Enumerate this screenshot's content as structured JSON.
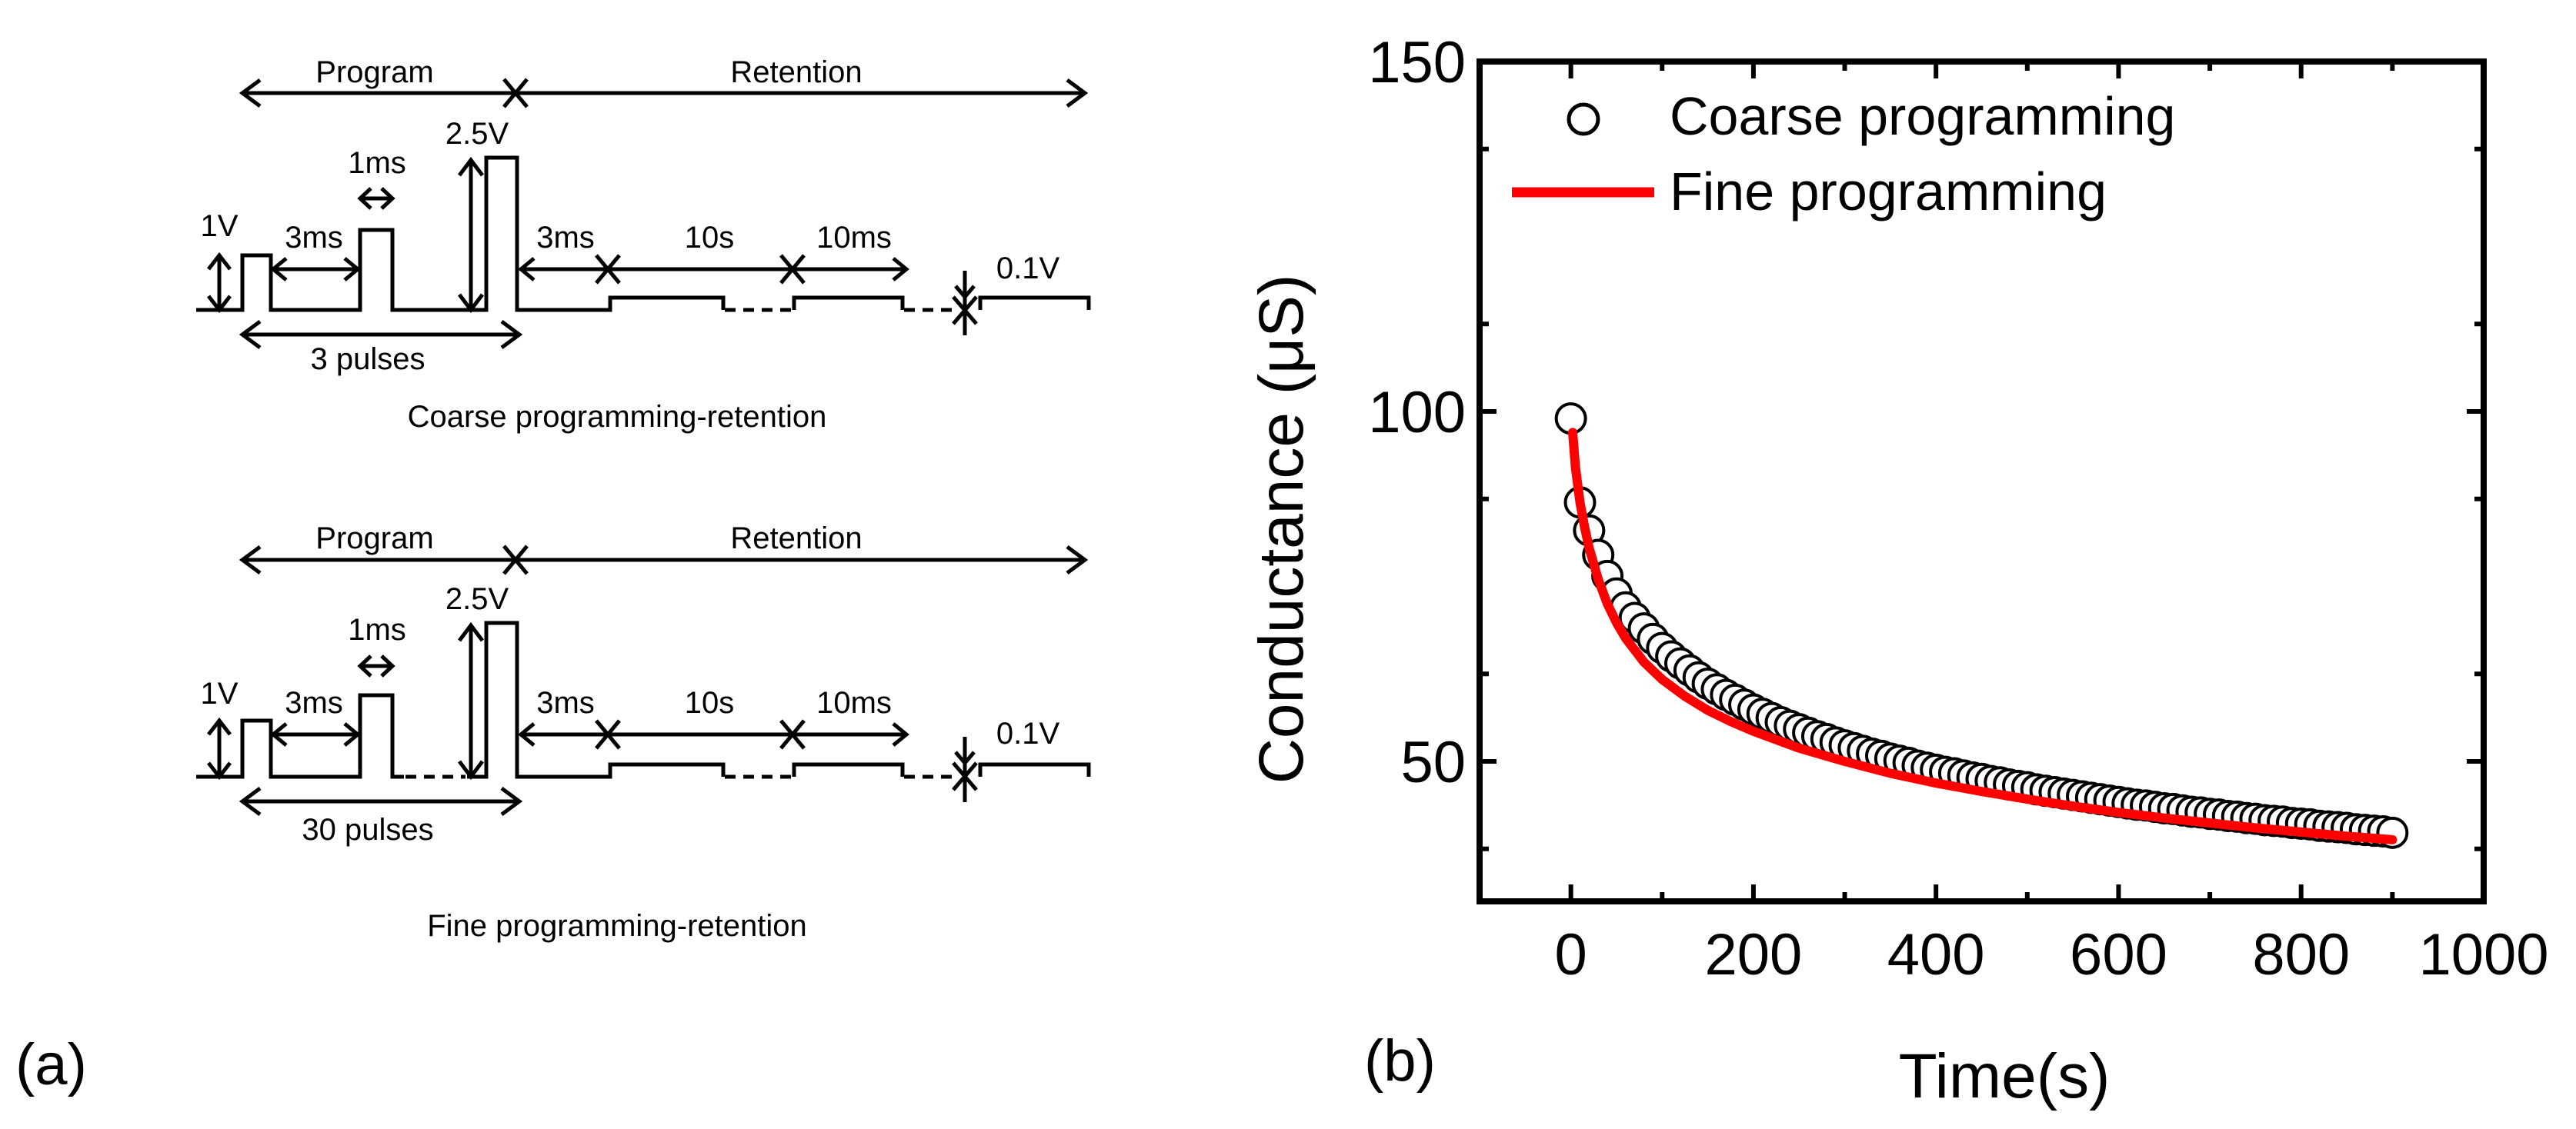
{
  "panel_a": {
    "label": "(a)",
    "coarse": {
      "program_label": "Program",
      "retention_label": "Retention",
      "v_read_start": "1V",
      "t_gap": "3ms",
      "t_pulse": "1ms",
      "v_program": "2.5V",
      "t_after": "3ms",
      "t_retention": "10s",
      "t_read": "10ms",
      "v_read": "0.1V",
      "pulses": "3 pulses",
      "caption": "Coarse programming-retention"
    },
    "fine": {
      "program_label": "Program",
      "retention_label": "Retention",
      "v_read_start": "1V",
      "t_gap": "3ms",
      "t_pulse": "1ms",
      "v_program": "2.5V",
      "t_after": "3ms",
      "t_retention": "10s",
      "t_read": "10ms",
      "v_read": "0.1V",
      "pulses": "30 pulses",
      "caption": "Fine programming-retention"
    }
  },
  "panel_b": {
    "label": "(b)"
  },
  "chart_data": {
    "type": "scatter",
    "title": "",
    "xlabel": "Time(s)",
    "ylabel": "Conductance (μS)",
    "xlim": [
      -100,
      1000
    ],
    "ylim": [
      30,
      150
    ],
    "xticks": [
      0,
      200,
      400,
      600,
      800,
      1000
    ],
    "yticks": [
      50,
      100,
      150
    ],
    "xtick_labels": [
      "0",
      "200",
      "400",
      "600",
      "800",
      "1000"
    ],
    "ytick_labels": [
      "50",
      "100",
      "150"
    ],
    "legend_position": "top-left",
    "series": [
      {
        "name": "Coarse programming",
        "style": "open-circle",
        "color": "#000000",
        "x": [
          0,
          10,
          20,
          30,
          40,
          50,
          60,
          70,
          80,
          90,
          100,
          110,
          120,
          130,
          140,
          150,
          160,
          170,
          180,
          190,
          200,
          210,
          220,
          230,
          240,
          250,
          260,
          270,
          280,
          290,
          300,
          310,
          320,
          330,
          340,
          350,
          360,
          370,
          380,
          390,
          400,
          410,
          420,
          430,
          440,
          450,
          460,
          470,
          480,
          490,
          500,
          510,
          520,
          530,
          540,
          550,
          560,
          570,
          580,
          590,
          600,
          610,
          620,
          630,
          640,
          650,
          660,
          670,
          680,
          690,
          700,
          710,
          720,
          730,
          740,
          750,
          760,
          770,
          780,
          790,
          800,
          810,
          820,
          830,
          840,
          850,
          860,
          870,
          880,
          890,
          900
        ],
        "y": [
          99,
          87,
          83,
          79.5,
          76.5,
          74,
          72,
          70.5,
          69,
          67.5,
          66.2,
          65,
          64,
          63,
          62,
          61.1,
          60.3,
          59.5,
          58.8,
          58.1,
          57.4,
          56.8,
          56.2,
          55.6,
          55.1,
          54.6,
          54.1,
          53.6,
          53.2,
          52.7,
          52.3,
          51.9,
          51.5,
          51.1,
          50.8,
          50.4,
          50.1,
          49.8,
          49.4,
          49.1,
          48.8,
          48.5,
          48.3,
          48,
          47.7,
          47.5,
          47.2,
          47,
          46.7,
          46.5,
          46.3,
          46,
          45.8,
          45.6,
          45.4,
          45.2,
          45,
          44.8,
          44.6,
          44.4,
          44.2,
          44,
          43.8,
          43.7,
          43.5,
          43.3,
          43.2,
          43,
          42.8,
          42.7,
          42.5,
          42.4,
          42.2,
          42.1,
          41.9,
          41.8,
          41.6,
          41.5,
          41.4,
          41.2,
          41.1,
          41,
          40.8,
          40.7,
          40.6,
          40.5,
          40.3,
          40.2,
          40.1,
          40,
          39.8
        ]
      },
      {
        "name": "Fine programming",
        "style": "line",
        "color": "#ff0000",
        "x": [
          2,
          5,
          10,
          15,
          20,
          30,
          40,
          50,
          60,
          80,
          100,
          125,
          150,
          175,
          200,
          250,
          300,
          350,
          400,
          450,
          500,
          550,
          600,
          650,
          700,
          750,
          800,
          850,
          900
        ],
        "y": [
          97,
          92,
          87,
          83.5,
          80.5,
          76,
          72.5,
          69.8,
          67.6,
          64.2,
          61.7,
          59.3,
          57.3,
          55.7,
          54.3,
          51.9,
          50,
          48.3,
          46.9,
          45.7,
          44.6,
          43.6,
          42.7,
          41.9,
          41.2,
          40.5,
          39.9,
          39.3,
          38.8
        ]
      }
    ]
  }
}
